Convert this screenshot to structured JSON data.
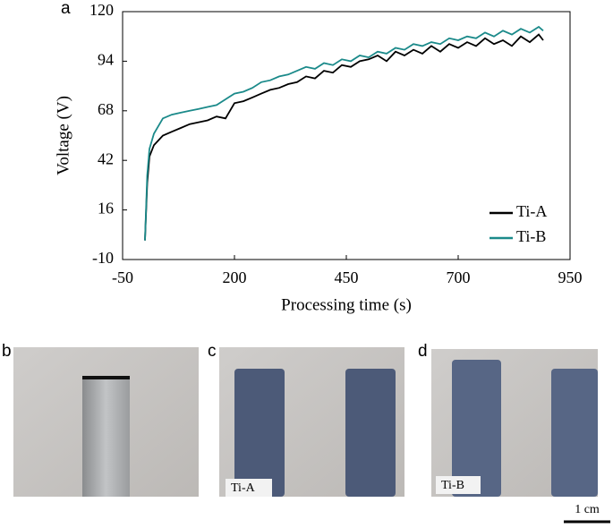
{
  "chart_data": {
    "type": "line",
    "panel_label": "a",
    "x_label": "Processing time (s)",
    "y_label": "Voltage (V)",
    "x": [
      0,
      5,
      10,
      20,
      40,
      60,
      80,
      100,
      120,
      140,
      160,
      180,
      200,
      220,
      240,
      260,
      280,
      300,
      320,
      340,
      360,
      380,
      400,
      420,
      440,
      460,
      480,
      500,
      520,
      540,
      560,
      580,
      600,
      620,
      640,
      660,
      680,
      700,
      720,
      740,
      760,
      780,
      800,
      820,
      840,
      860,
      880,
      890
    ],
    "series": [
      {
        "name": "Ti-A",
        "color": "#000000",
        "values": [
          0,
          30,
          44,
          50,
          55,
          57,
          59,
          61,
          62,
          63,
          65,
          64,
          72,
          73,
          75,
          77,
          79,
          80,
          82,
          83,
          86,
          85,
          89,
          88,
          92,
          91,
          94,
          95,
          97,
          94,
          99,
          97,
          100,
          98,
          102,
          99,
          103,
          101,
          104,
          102,
          106,
          103,
          105,
          102,
          107,
          104,
          108,
          105
        ]
      },
      {
        "name": "Ti-B",
        "color": "#1b8a8a",
        "values": [
          0,
          34,
          48,
          56,
          64,
          66,
          67,
          68,
          69,
          70,
          71,
          74,
          77,
          78,
          80,
          83,
          84,
          86,
          87,
          89,
          91,
          90,
          93,
          92,
          95,
          94,
          97,
          96,
          99,
          98,
          101,
          100,
          103,
          102,
          104,
          103,
          106,
          105,
          107,
          106,
          109,
          107,
          110,
          108,
          111,
          109,
          112,
          110
        ]
      }
    ],
    "xlim": [
      -50,
      950
    ],
    "xticks": [
      -50,
      200,
      450,
      700,
      950
    ],
    "ylim": [
      -10,
      120
    ],
    "yticks": [
      -10,
      16,
      42,
      68,
      94,
      120
    ],
    "legend": "lower right"
  },
  "panels": [
    {
      "label": "b"
    },
    {
      "label": "c",
      "caption": "Ti-A"
    },
    {
      "label": "d",
      "caption": "Ti-B"
    }
  ],
  "scale_bar": "1 cm"
}
